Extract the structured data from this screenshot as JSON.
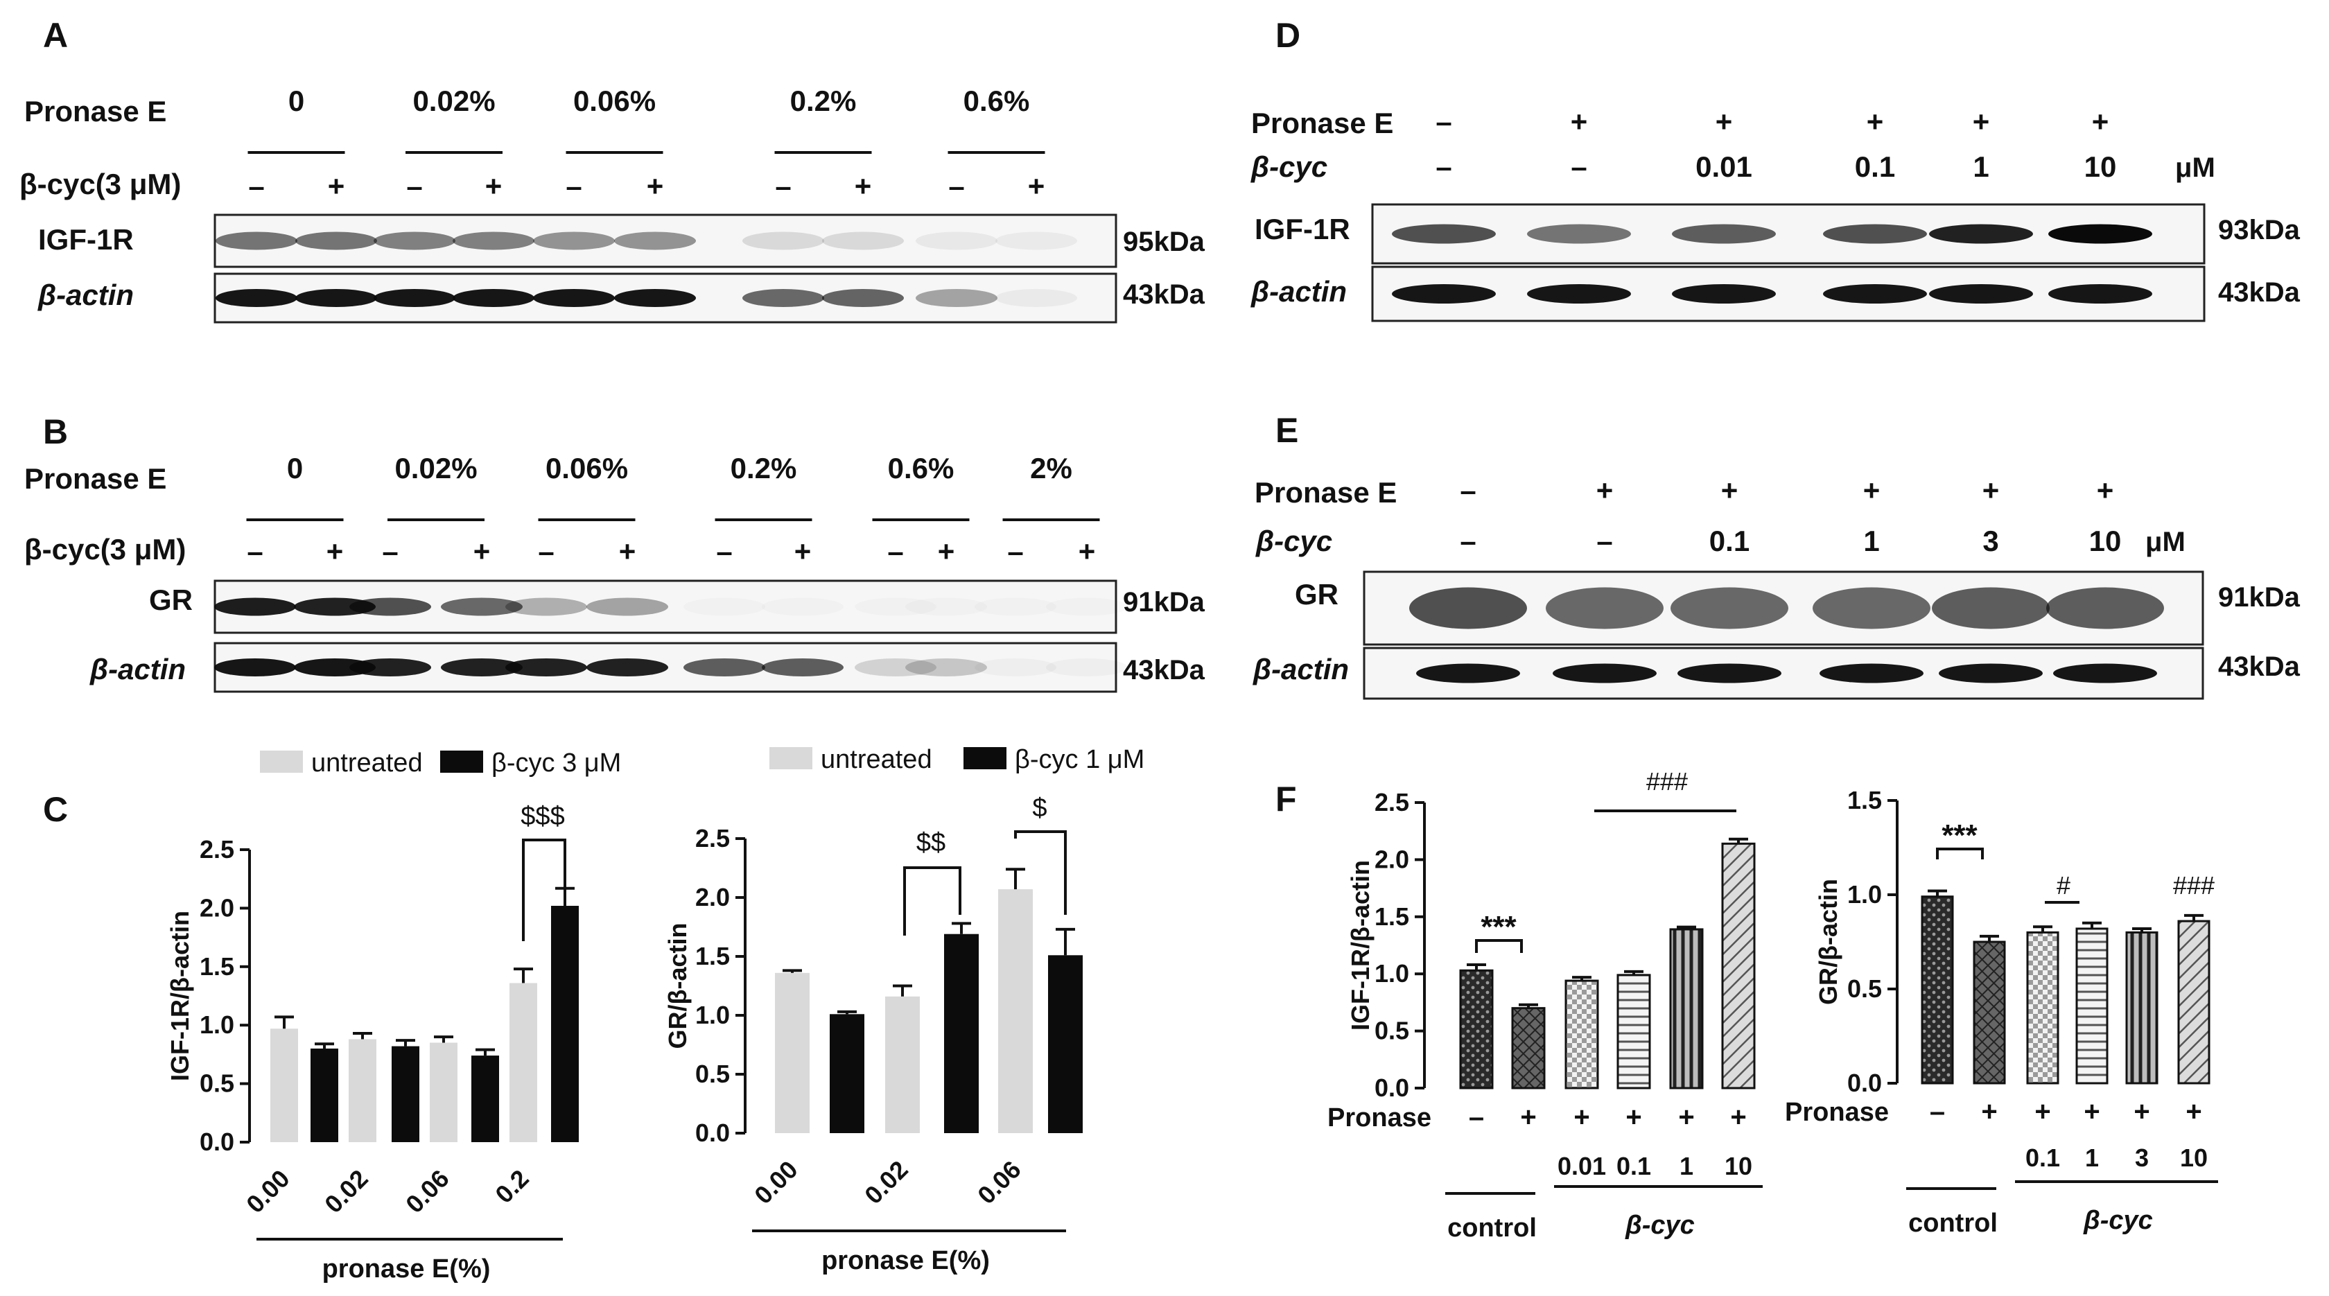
{
  "panels": {
    "A": {
      "letter": "A",
      "protease_label": "Pronase E",
      "concentrations": [
        "0",
        "0.02%",
        "0.06%",
        "0.2%",
        "0.6%"
      ],
      "treatment_label": "β-cyc(3 μM)",
      "signs": [
        "–",
        "+",
        "–",
        "+",
        "–",
        "+",
        "–",
        "+",
        "–",
        "+"
      ],
      "rows": [
        {
          "label": "IGF-1R",
          "mw": "95kDa",
          "intensity": [
            0.55,
            0.55,
            0.5,
            0.5,
            0.42,
            0.42,
            0.12,
            0.12,
            0.06,
            0.05
          ]
        },
        {
          "label": "β-actin",
          "mw": "43kDa",
          "intensity": [
            0.95,
            0.95,
            0.95,
            0.95,
            0.95,
            0.95,
            0.6,
            0.62,
            0.35,
            0.05
          ]
        }
      ]
    },
    "B": {
      "letter": "B",
      "protease_label": "Pronase E",
      "concentrations": [
        "0",
        "0.02%",
        "0.06%",
        "0.2%",
        "0.6%",
        "2%"
      ],
      "treatment_label": "β-cyc(3 μM)",
      "signs": [
        "–",
        "+",
        "–",
        "+",
        "–",
        "+",
        "–",
        "+",
        "–",
        "+",
        "–",
        "+"
      ],
      "rows": [
        {
          "label": "GR",
          "mw": "91kDa",
          "intensity": [
            0.92,
            0.9,
            0.7,
            0.6,
            0.3,
            0.35,
            0.02,
            0.02,
            0.02,
            0.02,
            0.02,
            0.02
          ]
        },
        {
          "label": "β-actin",
          "mw": "43kDa",
          "intensity": [
            0.95,
            0.95,
            0.9,
            0.9,
            0.9,
            0.9,
            0.65,
            0.65,
            0.15,
            0.2,
            0.03,
            0.03
          ]
        }
      ]
    },
    "D": {
      "letter": "D",
      "protease_label": "Pronase E",
      "treatment_label": "β-cyc",
      "pronase_signs": [
        "–",
        "+",
        "+",
        "+",
        "+",
        "+"
      ],
      "doses": [
        "–",
        "–",
        "0.01",
        "0.1",
        "1",
        "10"
      ],
      "unit": "μM",
      "rows": [
        {
          "label": "IGF-1R",
          "mw": "93kDa",
          "intensity": [
            0.7,
            0.55,
            0.65,
            0.7,
            0.9,
            1.0
          ]
        },
        {
          "label": "β-actin",
          "mw": "43kDa",
          "intensity": [
            0.95,
            0.95,
            0.95,
            0.95,
            0.95,
            0.95
          ]
        }
      ]
    },
    "E": {
      "letter": "E",
      "protease_label": "Pronase E",
      "treatment_label": "β-cyc",
      "pronase_signs": [
        "–",
        "+",
        "+",
        "+",
        "+",
        "+"
      ],
      "doses": [
        "–",
        "–",
        "0.1",
        "1",
        "3",
        "10"
      ],
      "unit": "μM",
      "rows": [
        {
          "label": "GR",
          "mw": "91kDa",
          "intensity": [
            0.7,
            0.6,
            0.6,
            0.6,
            0.65,
            0.65
          ]
        },
        {
          "label": "β-actin",
          "mw": "43kDa",
          "intensity": [
            0.95,
            0.95,
            0.95,
            0.95,
            0.95,
            0.95
          ]
        }
      ]
    },
    "C": {
      "letter": "C"
    },
    "F": {
      "letter": "F"
    }
  },
  "chart_data": [
    {
      "id": "C-left",
      "type": "bar",
      "legend": [
        "untreated",
        "β-cyc 3 μM"
      ],
      "ylabel": "IGF-1R/β-actin",
      "xlabel": "pronase E(%)",
      "ylim": [
        0,
        2.5
      ],
      "yticks": [
        "0.0",
        "0.5",
        "1.0",
        "1.5",
        "2.0",
        "2.5"
      ],
      "categories": [
        "0.00",
        "0.02",
        "0.06",
        "0.2"
      ],
      "series": [
        {
          "name": "untreated",
          "values": [
            0.97,
            0.88,
            0.85,
            1.36
          ],
          "errors": [
            0.1,
            0.05,
            0.05,
            0.12
          ],
          "color": "#d9d9d9"
        },
        {
          "name": "β-cyc 3 μM",
          "values": [
            0.8,
            0.82,
            0.74,
            2.02
          ],
          "errors": [
            0.04,
            0.05,
            0.05,
            0.15
          ],
          "color": "#0c0c0c"
        }
      ],
      "annotations": [
        "$$$"
      ]
    },
    {
      "id": "C-right",
      "type": "bar",
      "legend": [
        "untreated",
        "β-cyc 1 μM"
      ],
      "ylabel": "GR/β-actin",
      "xlabel": "pronase E(%)",
      "ylim": [
        0,
        2.5
      ],
      "yticks": [
        "0.0",
        "0.5",
        "1.0",
        "1.5",
        "2.0",
        "2.5"
      ],
      "categories": [
        "0.00",
        "0.02",
        "0.06"
      ],
      "series": [
        {
          "name": "untreated",
          "values": [
            1.36,
            1.16,
            2.07
          ],
          "errors": [
            0.02,
            0.09,
            0.17
          ],
          "color": "#d9d9d9"
        },
        {
          "name": "β-cyc 1 μM",
          "values": [
            1.01,
            1.69,
            1.51
          ],
          "errors": [
            0.02,
            0.09,
            0.22
          ],
          "color": "#0c0c0c"
        }
      ],
      "annotations": [
        "$$",
        "$"
      ]
    },
    {
      "id": "F-left",
      "type": "bar",
      "ylabel": "IGF-1R/β-actin",
      "ylim": [
        0,
        2.5
      ],
      "yticks": [
        "0.0",
        "0.5",
        "1.0",
        "1.5",
        "2.0",
        "2.5"
      ],
      "pronase_label": "Pronase",
      "pronase_signs": [
        "–",
        "+",
        "+",
        "+",
        "+",
        "+"
      ],
      "categories": [
        "",
        "",
        "0.01",
        "0.1",
        "1",
        "10"
      ],
      "values": [
        1.03,
        0.7,
        0.94,
        0.99,
        1.39,
        2.14
      ],
      "errors": [
        0.05,
        0.03,
        0.03,
        0.03,
        0.02,
        0.04
      ],
      "group_labels": [
        "control",
        "β-cyc"
      ],
      "annotations": [
        "***",
        "###"
      ]
    },
    {
      "id": "F-right",
      "type": "bar",
      "ylabel": "GR/β-actin",
      "ylim": [
        0,
        1.5
      ],
      "yticks": [
        "0.0",
        "0.5",
        "1.0",
        "1.5"
      ],
      "pronase_label": "Pronase",
      "pronase_signs": [
        "–",
        "+",
        "+",
        "+",
        "+",
        "+"
      ],
      "categories": [
        "",
        "",
        "0.1",
        "1",
        "3",
        "10"
      ],
      "values": [
        0.99,
        0.75,
        0.8,
        0.82,
        0.8,
        0.86
      ],
      "errors": [
        0.03,
        0.03,
        0.03,
        0.03,
        0.02,
        0.03
      ],
      "group_labels": [
        "control",
        "β-cyc"
      ],
      "annotations": [
        "***",
        "#",
        "###"
      ]
    }
  ]
}
